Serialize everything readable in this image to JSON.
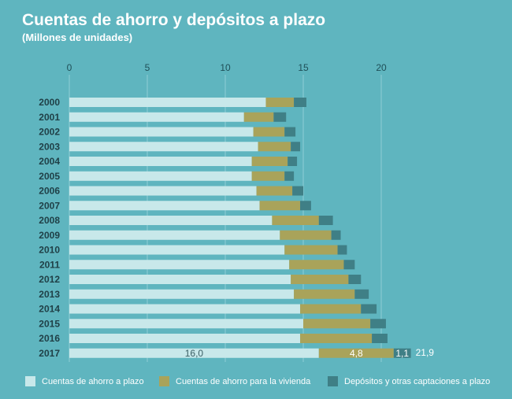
{
  "header": {
    "title": "Cuentas de ahorro y depósitos a plazo",
    "subtitle": "(Millones de unidades)"
  },
  "chart_data": {
    "type": "bar",
    "orientation": "horizontal",
    "stacked": true,
    "title": "Cuentas de ahorro y depósitos a plazo",
    "subtitle": "(Millones de unidades)",
    "xlim": [
      0,
      20
    ],
    "x_ticks": [
      0,
      5,
      10,
      15,
      20
    ],
    "x_axis_position": "top",
    "grid": true,
    "legend_position": "bottom",
    "categories": [
      "2000",
      "2001",
      "2002",
      "2003",
      "2004",
      "2005",
      "2006",
      "2007",
      "2008",
      "2009",
      "2010",
      "2011",
      "2012",
      "2013",
      "2014",
      "2015",
      "2016",
      "2017"
    ],
    "series": [
      {
        "name": "Cuentas de ahorro a plazo",
        "color": "#c8e8ea",
        "values": [
          12.6,
          11.2,
          11.8,
          12.1,
          11.7,
          11.7,
          12.0,
          12.2,
          13.0,
          13.5,
          13.8,
          14.1,
          14.2,
          14.4,
          14.8,
          15.0,
          14.8,
          16.0
        ]
      },
      {
        "name": "Cuentas de ahorro para la vivienda",
        "color": "#a9a35a",
        "values": [
          1.8,
          1.9,
          2.0,
          2.1,
          2.3,
          2.1,
          2.3,
          2.6,
          3.0,
          3.3,
          3.4,
          3.5,
          3.7,
          3.9,
          3.9,
          4.3,
          4.6,
          4.8
        ]
      },
      {
        "name": "Depósitos y otras captaciones a plazo",
        "color": "#3f7f86",
        "values": [
          0.8,
          0.8,
          0.7,
          0.6,
          0.6,
          0.6,
          0.7,
          0.7,
          0.9,
          0.6,
          0.6,
          0.7,
          0.8,
          0.9,
          1.0,
          1.0,
          1.0,
          1.1
        ]
      }
    ],
    "annotations": {
      "row": "2017",
      "segment_labels": [
        "16,0",
        "4,8",
        "1,1"
      ],
      "total_label": "21,9"
    }
  }
}
